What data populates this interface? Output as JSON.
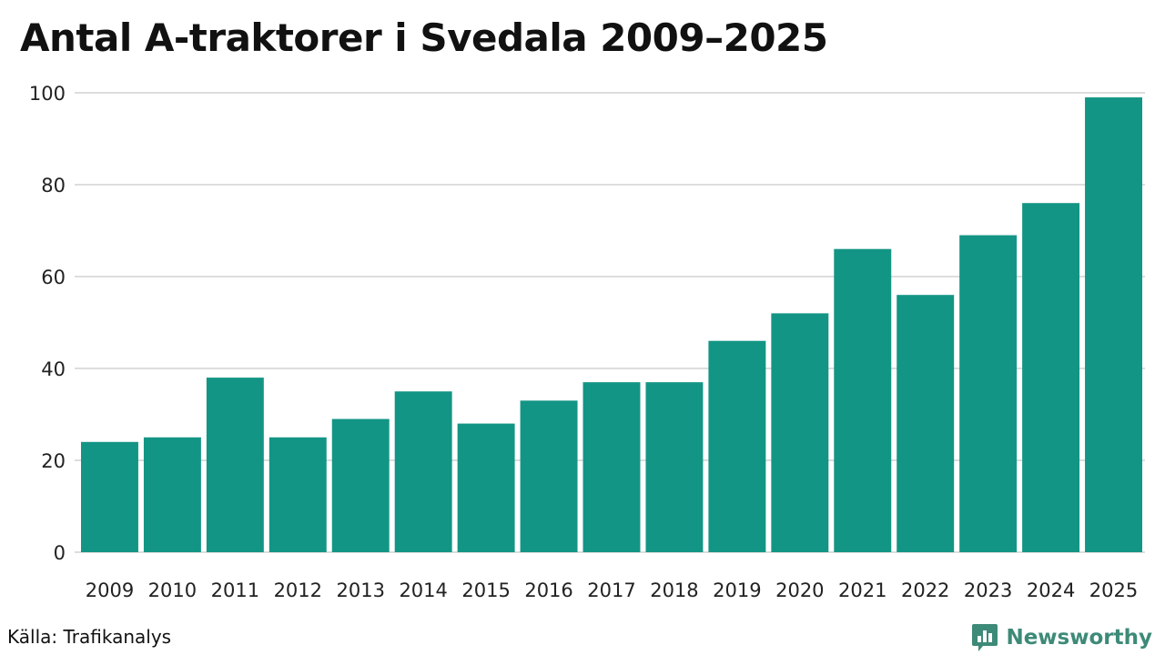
{
  "title": "Antal A-traktorer i Svedala 2009–2025",
  "source": "Källa: Trafikanalys",
  "brand": {
    "name": "Newsworthy",
    "icon": "newsworthy-logo-icon",
    "color": "#3d8a78"
  },
  "colors": {
    "bar": "#139585",
    "grid": "#dddddd"
  },
  "chart_data": {
    "type": "bar",
    "title": "Antal A-traktorer i Svedala 2009–2025",
    "xlabel": "",
    "ylabel": "",
    "categories": [
      "2009",
      "2010",
      "2011",
      "2012",
      "2013",
      "2014",
      "2015",
      "2016",
      "2017",
      "2018",
      "2019",
      "2020",
      "2021",
      "2022",
      "2023",
      "2024",
      "2025"
    ],
    "values": [
      24,
      25,
      38,
      25,
      29,
      35,
      28,
      33,
      37,
      37,
      46,
      52,
      66,
      56,
      69,
      76,
      99
    ],
    "ylim": [
      0,
      100
    ],
    "yticks": [
      0,
      20,
      40,
      60,
      80,
      100
    ],
    "grid": true,
    "legend": "none"
  }
}
